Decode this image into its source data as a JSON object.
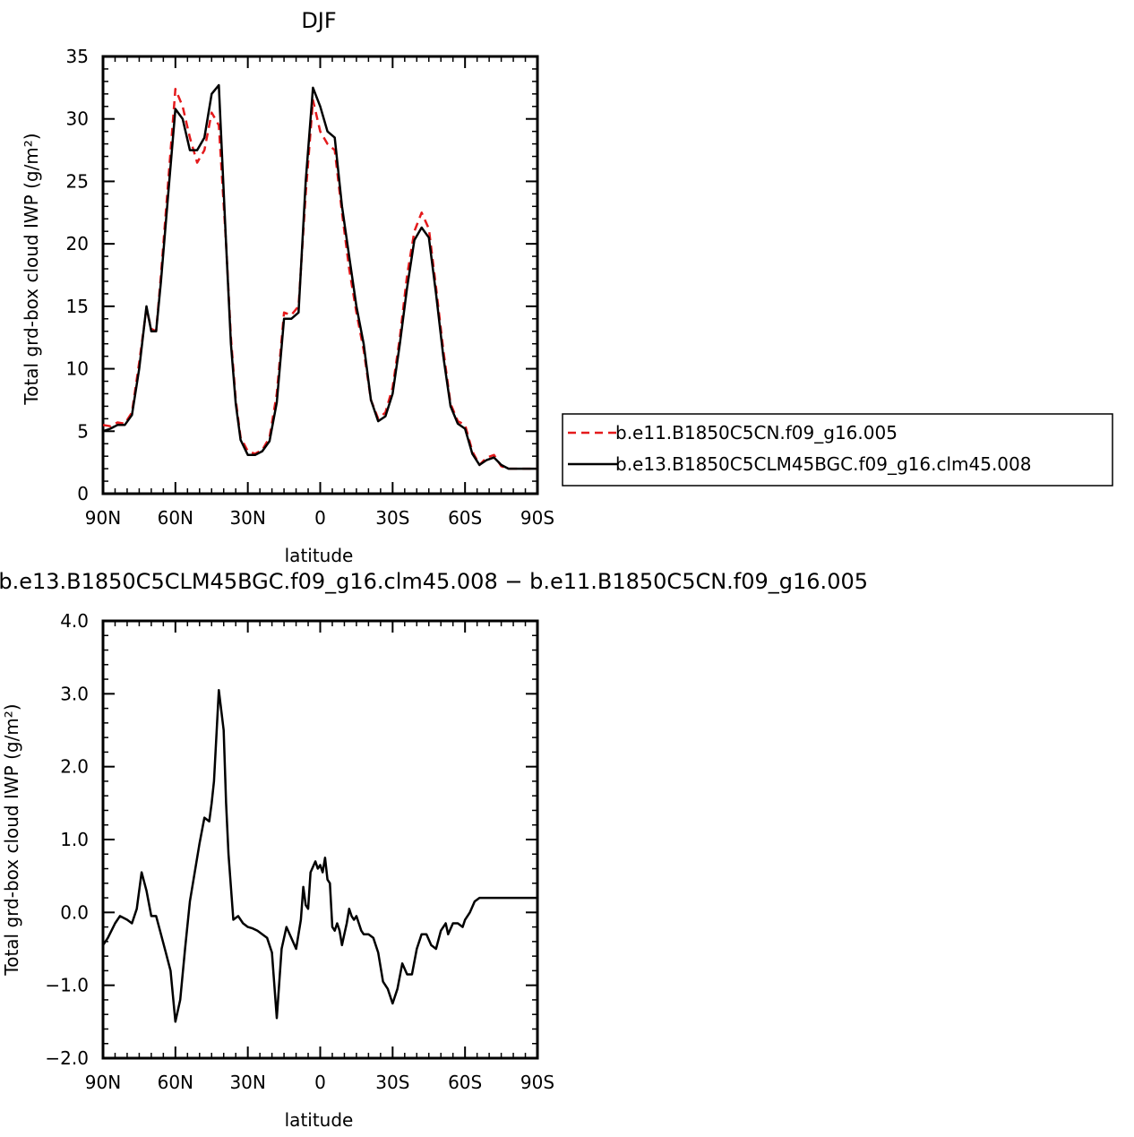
{
  "chart_data": [
    {
      "type": "line",
      "title": "DJF",
      "xlabel": "latitude",
      "ylabel": "Total grd-box cloud IWP (g/m²)",
      "xlim": [
        90,
        -90
      ],
      "ylim": [
        0,
        35
      ],
      "x_ticks": [
        {
          "value": 90,
          "label": "90N"
        },
        {
          "value": 60,
          "label": "60N"
        },
        {
          "value": 30,
          "label": "30N"
        },
        {
          "value": 0,
          "label": "0"
        },
        {
          "value": -30,
          "label": "30S"
        },
        {
          "value": -60,
          "label": "60S"
        },
        {
          "value": -90,
          "label": "90S"
        }
      ],
      "y_ticks": [
        {
          "value": 0,
          "label": "0"
        },
        {
          "value": 5,
          "label": "5"
        },
        {
          "value": 10,
          "label": "10"
        },
        {
          "value": 15,
          "label": "15"
        },
        {
          "value": 20,
          "label": "20"
        },
        {
          "value": 25,
          "label": "25"
        },
        {
          "value": 30,
          "label": "30"
        },
        {
          "value": 35,
          "label": "35"
        }
      ],
      "legend_position": "right",
      "x": [
        90,
        87,
        84,
        81,
        78,
        75,
        72,
        70,
        68,
        66,
        63,
        60,
        57,
        54,
        51,
        48,
        45,
        42,
        39,
        37,
        35,
        33,
        30,
        27,
        24,
        21,
        18,
        15,
        12,
        9,
        6,
        3,
        0,
        -3,
        -6,
        -9,
        -12,
        -15,
        -18,
        -21,
        -24,
        -27,
        -30,
        -33,
        -36,
        -39,
        -42,
        -45,
        -48,
        -51,
        -54,
        -57,
        -60,
        -63,
        -66,
        -69,
        -72,
        -75,
        -78,
        -81,
        -84,
        -87,
        -90
      ],
      "series": [
        {
          "name": "b.e11.B1850C5CN.f09_g16.005",
          "color": "#e41a1c",
          "dash": "dashed",
          "values": [
            5.5,
            5.4,
            5.7,
            5.6,
            6.5,
            10.5,
            14.8,
            13.2,
            13,
            17.5,
            25,
            32.4,
            31,
            28.5,
            26.5,
            27.5,
            30.5,
            29.5,
            20,
            12.5,
            7.5,
            4.5,
            3.4,
            3.2,
            3.5,
            4.5,
            8,
            14.5,
            14.3,
            15,
            24,
            31.5,
            29,
            28,
            27.5,
            22.5,
            18,
            14.5,
            11.5,
            7.5,
            6,
            6.5,
            8.5,
            12.5,
            17.5,
            21,
            22.5,
            21.2,
            16.5,
            11.5,
            7.2,
            5.8,
            5.5,
            3.4,
            2.3,
            2.9,
            3.1,
            2.2,
            2,
            2,
            2,
            2,
            2
          ]
        },
        {
          "name": "b.e13.B1850C5CLM45BGC.f09_g16.clm45.008",
          "color": "#000000",
          "dash": "solid",
          "values": [
            5,
            5.2,
            5.5,
            5.5,
            6.3,
            10,
            15,
            13,
            13,
            17,
            24,
            30.8,
            30,
            27.5,
            27.5,
            28.5,
            32,
            32.7,
            20,
            12,
            7.2,
            4.3,
            3.1,
            3.1,
            3.4,
            4.2,
            7.3,
            14,
            14,
            14.5,
            25,
            32.5,
            31,
            29,
            28.5,
            23,
            19,
            15,
            12,
            7.5,
            5.8,
            6.2,
            8,
            12,
            16.5,
            20.3,
            21.3,
            20.5,
            16,
            11,
            7,
            5.6,
            5.2,
            3.2,
            2.3,
            2.7,
            2.9,
            2.3,
            2,
            2,
            2,
            2,
            2
          ]
        }
      ]
    },
    {
      "type": "line",
      "title": "b.e13.B1850C5CLM45BGC.f09_g16.clm45.008 − b.e11.B1850C5CN.f09_g16.005",
      "xlabel": "latitude",
      "ylabel": "Total grd-box cloud IWP (g/m²)",
      "xlim": [
        90,
        -90
      ],
      "ylim": [
        -2.0,
        4.0
      ],
      "x_ticks": [
        {
          "value": 90,
          "label": "90N"
        },
        {
          "value": 60,
          "label": "60N"
        },
        {
          "value": 30,
          "label": "30N"
        },
        {
          "value": 0,
          "label": "0"
        },
        {
          "value": -30,
          "label": "30S"
        },
        {
          "value": -60,
          "label": "60S"
        },
        {
          "value": -90,
          "label": "90S"
        }
      ],
      "y_ticks": [
        {
          "value": -2.0,
          "label": "−2.0"
        },
        {
          "value": -1.0,
          "label": "−1.0"
        },
        {
          "value": 0.0,
          "label": "0.0"
        },
        {
          "value": 1.0,
          "label": "1.0"
        },
        {
          "value": 2.0,
          "label": "2.0"
        },
        {
          "value": 3.0,
          "label": "3.0"
        },
        {
          "value": 4.0,
          "label": "4.0"
        }
      ],
      "x": [
        90,
        88,
        85,
        83,
        80,
        78,
        76,
        74,
        72,
        70,
        68,
        66,
        64,
        62,
        60,
        58,
        56,
        54,
        52,
        50,
        48,
        46,
        45,
        44,
        42,
        40,
        39,
        38,
        36,
        34,
        32,
        30,
        28,
        26,
        24,
        22,
        20,
        18,
        16,
        14,
        12,
        10,
        8,
        7,
        6,
        5,
        4,
        2,
        1,
        0,
        -1,
        -2,
        -3,
        -4,
        -5,
        -6,
        -7,
        -8,
        -9,
        -10,
        -11,
        -12,
        -13,
        -14,
        -15,
        -16,
        -17,
        -18,
        -20,
        -22,
        -24,
        -26,
        -28,
        -30,
        -32,
        -34,
        -36,
        -38,
        -40,
        -42,
        -44,
        -46,
        -48,
        -50,
        -52,
        -53,
        -55,
        -57,
        -59,
        -60,
        -62,
        -64,
        -66,
        -68,
        -70,
        -72,
        -74,
        -76,
        -78,
        -80,
        -82,
        -84,
        -86,
        -88,
        -90
      ],
      "series": [
        {
          "name": "",
          "color": "#000000",
          "dash": "solid",
          "values": [
            -0.45,
            -0.35,
            -0.15,
            -0.05,
            -0.1,
            -0.15,
            0.05,
            0.55,
            0.3,
            -0.05,
            -0.05,
            -0.3,
            -0.55,
            -0.8,
            -1.5,
            -1.2,
            -0.5,
            0.15,
            0.55,
            0.95,
            1.3,
            1.25,
            1.5,
            1.8,
            3.05,
            2.5,
            1.5,
            0.8,
            -0.1,
            -0.05,
            -0.15,
            -0.2,
            -0.22,
            -0.25,
            -0.3,
            -0.35,
            -0.55,
            -1.45,
            -0.5,
            -0.2,
            -0.35,
            -0.5,
            -0.1,
            0.35,
            0.1,
            0.05,
            0.55,
            0.7,
            0.6,
            0.65,
            0.55,
            0.75,
            0.45,
            0.4,
            -0.2,
            -0.25,
            -0.15,
            -0.25,
            -0.45,
            -0.3,
            -0.15,
            0.05,
            -0.05,
            -0.1,
            -0.05,
            -0.15,
            -0.25,
            -0.3,
            -0.3,
            -0.35,
            -0.55,
            -0.95,
            -1.05,
            -1.25,
            -1.05,
            -0.7,
            -0.85,
            -0.85,
            -0.5,
            -0.3,
            -0.3,
            -0.45,
            -0.5,
            -0.25,
            -0.15,
            -0.3,
            -0.15,
            -0.15,
            -0.2,
            -0.1,
            0.0,
            0.15,
            0.2,
            0.2,
            0.2,
            0.2,
            0.2,
            0.2,
            0.2,
            0.2,
            0.2,
            0.2,
            0.2,
            0.2,
            0.2
          ]
        }
      ]
    }
  ]
}
